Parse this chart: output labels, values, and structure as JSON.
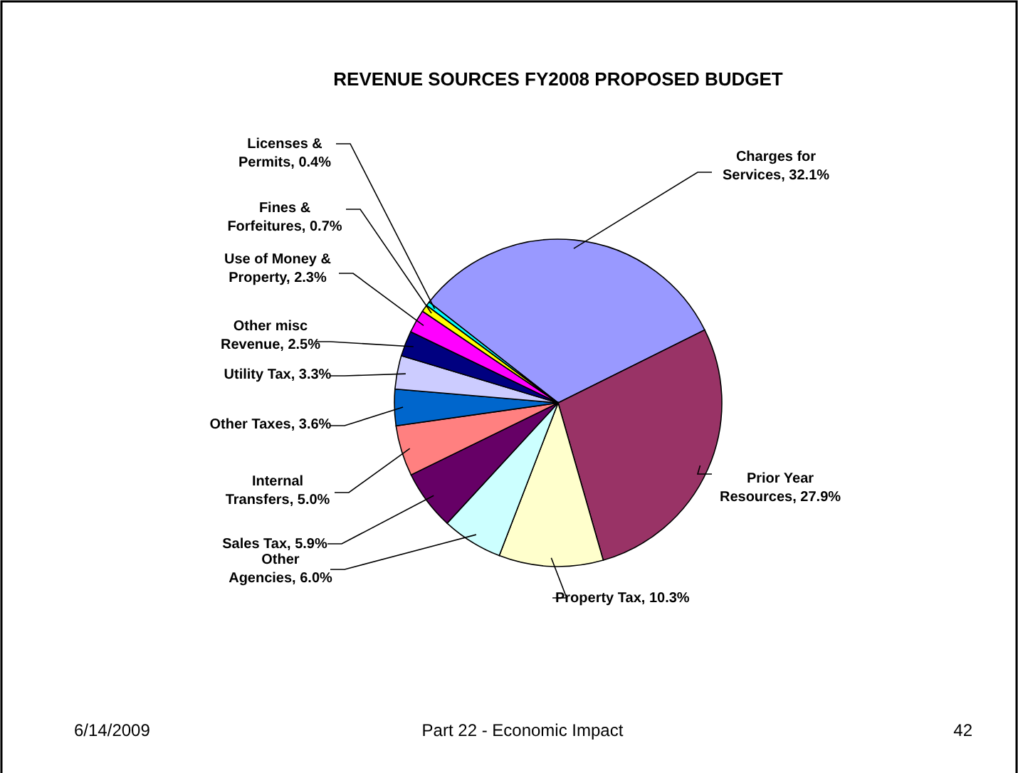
{
  "chart_data": {
    "type": "pie",
    "title": "REVENUE SOURCES FY2008 PROPOSED BUDGET",
    "categories": [
      "Charges for Services",
      "Prior Year Resources",
      "Property Tax",
      "Other Agencies",
      "Sales Tax",
      "Internal Transfers",
      "Other Taxes",
      "Utility Tax",
      "Other misc Revenue",
      "Use of Money & Property",
      "Fines & Forfeitures",
      "Licenses & Permits"
    ],
    "values": [
      32.1,
      27.9,
      10.3,
      6.0,
      5.9,
      5.0,
      3.6,
      3.3,
      2.5,
      2.3,
      0.7,
      0.4
    ],
    "value_labels": [
      "32.1%",
      "27.9%",
      "10.3%",
      "6.0%",
      "5.9%",
      "5.0%",
      "3.6%",
      "3.3%",
      "2.5%",
      "2.3%",
      "0.7%",
      "0.4%"
    ],
    "colors": [
      "#9999ff",
      "#993366",
      "#ffffcc",
      "#ccffff",
      "#660066",
      "#ff8080",
      "#0066cc",
      "#ccccff",
      "#000080",
      "#ff00ff",
      "#ffff00",
      "#00ffff"
    ],
    "legend": false,
    "annotations": [
      "6/14/2009",
      "Part 22 - Economic Impact",
      "42"
    ]
  }
}
